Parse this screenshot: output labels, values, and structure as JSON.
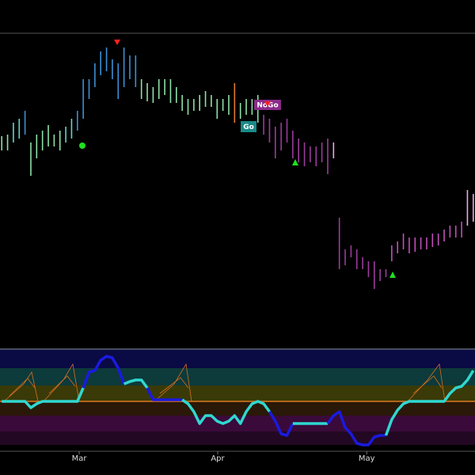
{
  "chart_data": [
    {
      "type": "ohlc",
      "high": [
        67,
        67.5,
        71.25,
        72.5,
        75,
        65,
        67.5,
        68.75,
        70.5,
        67.5,
        68.75,
        70,
        72.5,
        75,
        85,
        85,
        90,
        93.75,
        95,
        91.25,
        90,
        95,
        92.5,
        92.5,
        85,
        83.75,
        82.5,
        85,
        85,
        85,
        82.5,
        80,
        78.75,
        78.75,
        80,
        81.25,
        80,
        78.75,
        78.75,
        80,
        83.75,
        77.5,
        78.75,
        78.75,
        80,
        73.75,
        72.5,
        70,
        71.25,
        72.5,
        68.75,
        66.25,
        65,
        63.75,
        63.75,
        65,
        66.25,
        65,
        41.25,
        31.25,
        32.5,
        31.25,
        28.75,
        27.5,
        27.5,
        25,
        25,
        32.5,
        33.75,
        36.25,
        35,
        35,
        35,
        35,
        36.25,
        36.25,
        37.5,
        38.75,
        38.75,
        40,
        50,
        48.75
      ],
      "low": [
        62.5,
        62.5,
        65,
        66.25,
        67.5,
        54.5,
        60,
        62.5,
        63.75,
        63.75,
        62.5,
        65,
        66.25,
        68.75,
        72.5,
        78.75,
        82.5,
        86.25,
        87.5,
        85,
        78.75,
        82.5,
        85,
        82.5,
        78.75,
        78,
        77.5,
        78.75,
        80,
        77.5,
        77.5,
        75,
        73.75,
        75,
        75,
        76.25,
        76.25,
        72.5,
        75,
        73.75,
        71.25,
        72.5,
        73.75,
        73.75,
        71.25,
        67.5,
        65,
        60,
        62.5,
        65,
        60,
        58.75,
        57.5,
        58.75,
        57.5,
        58.75,
        55,
        60,
        25,
        26.25,
        28.75,
        25,
        25,
        22.5,
        18.75,
        21.25,
        22.5,
        27.5,
        30,
        31.25,
        30,
        30.5,
        31.25,
        31.25,
        32,
        32.5,
        33.75,
        35,
        35,
        35,
        38.75,
        40
      ],
      "colors": [
        "#8ee0a8",
        "#8ee0a8",
        "#66d4c4",
        "#66d4c4",
        "#3d8fd6",
        "#8ee0a8",
        "#8ee0a8",
        "#8ee0a8",
        "#8ee0a8",
        "#8ee0a8",
        "#8ee0a8",
        "#66d4c4",
        "#66d4c4",
        "#3d8fd6",
        "#3d8fd6",
        "#3d8fd6",
        "#3d8fd6",
        "#3d8fd6",
        "#3d8fd6",
        "#3d8fd6",
        "#3d8fd6",
        "#3d8fd6",
        "#3d8fd6",
        "#3d8fd6",
        "#8ee0a8",
        "#8ee0a8",
        "#8ee0a8",
        "#8ee0a8",
        "#8ee0a8",
        "#8ee0a8",
        "#8ee0a8",
        "#8ee0a8",
        "#8ee0a8",
        "#8ee0a8",
        "#8ee0a8",
        "#8ee0a8",
        "#8ee0a8",
        "#8ee0a8",
        "#8ee0a8",
        "#8ee0a8",
        "#e07a2a",
        "#8ee0a8",
        "#8ee0a8",
        "#8ee0a8",
        "#8ee0a8",
        "#9b3c9b",
        "#9b3c9b",
        "#9b3c9b",
        "#9b3c9b",
        "#9b3c9b",
        "#9b3c9b",
        "#9b3c9b",
        "#9b3c9b",
        "#9b3c9b",
        "#9b3c9b",
        "#9b3c9b",
        "#9b3c9b",
        "#e9a8e6",
        "#9b3c9b",
        "#9b3c9b",
        "#9b3c9b",
        "#9b3c9b",
        "#9b3c9b",
        "#9b3c9b",
        "#9b3c9b",
        "#9b3c9b",
        "#9b3c9b",
        "#c050b8",
        "#c050b8",
        "#c050b8",
        "#c050b8",
        "#c050b8",
        "#c050b8",
        "#c050b8",
        "#c050b8",
        "#c050b8",
        "#c050b8",
        "#c050b8",
        "#c050b8",
        "#c050b8",
        "#e9a8e6",
        "#e9a8e6"
      ],
      "ylim": [
        0,
        100
      ],
      "xlim": [
        -0.3,
        81.3
      ],
      "annotations": [
        "Go",
        "NoGo"
      ]
    },
    {
      "type": "line",
      "values": [
        0,
        0,
        0,
        0,
        0,
        -0.8,
        -0.3,
        0,
        0,
        0,
        0,
        0,
        0,
        0,
        1.7,
        3.7,
        3.9,
        5.2,
        5.7,
        5.5,
        4.2,
        2.2,
        2.5,
        2.7,
        2.7,
        1.7,
        0.2,
        0.2,
        0.2,
        0.2,
        0.2,
        0.2,
        -0.3,
        -1.3,
        -2.8,
        -1.8,
        -1.8,
        -2.5,
        -2.8,
        -2.5,
        -1.8,
        -2.8,
        -1.3,
        -0.3,
        0,
        -0.3,
        -1.3,
        -2.5,
        -4.1,
        -4.3,
        -2.8,
        -2.8,
        -2.8,
        -2.8,
        -2.8,
        -2.8,
        -2.8,
        -1.8,
        -1.3,
        -3.3,
        -4.1,
        -5.3,
        -5.5,
        -5.5,
        -4.5,
        -4.3,
        -4.3,
        -2.3,
        -1.1,
        -0.3,
        0,
        0,
        0,
        0,
        0,
        0,
        0,
        1,
        1.7,
        1.9,
        2.7,
        3.9
      ],
      "colors": [
        "#2fd8d0",
        "#2fd8d0",
        "#2fd8d0",
        "#2fd8d0",
        "#2fd8d0",
        "#2fd8d0",
        "#2fd8d0",
        "#2fd8d0",
        "#2fd8d0",
        "#2fd8d0",
        "#2fd8d0",
        "#2fd8d0",
        "#2fd8d0",
        "#2fd8d0",
        "#2fd8d0",
        "#1a1ae0",
        "#1a1ae0",
        "#1a1ae0",
        "#1a1ae0",
        "#1a1ae0",
        "#1a1ae0",
        "#1a1ae0",
        "#2fd8d0",
        "#2fd8d0",
        "#2fd8d0",
        "#2fd8d0",
        "#1a1ae0",
        "#1a1ae0",
        "#1a1ae0",
        "#1a1ae0",
        "#1a1ae0",
        "#1a1ae0",
        "#2fd8d0",
        "#2fd8d0",
        "#2fd8d0",
        "#2fd8d0",
        "#2fd8d0",
        "#2fd8d0",
        "#2fd8d0",
        "#2fd8d0",
        "#2fd8d0",
        "#2fd8d0",
        "#2fd8d0",
        "#2fd8d0",
        "#2fd8d0",
        "#2fd8d0",
        "#2fd8d0",
        "#1a1ae0",
        "#1a1ae0",
        "#1a1ae0",
        "#1a1ae0",
        "#2fd8d0",
        "#2fd8d0",
        "#2fd8d0",
        "#2fd8d0",
        "#2fd8d0",
        "#2fd8d0",
        "#1a1ae0",
        "#1a1ae0",
        "#1a1ae0",
        "#1a1ae0",
        "#1a1ae0",
        "#1a1ae0",
        "#1a1ae0",
        "#1a1ae0",
        "#1a1ae0",
        "#1a1ae0",
        "#2fd8d0",
        "#2fd8d0",
        "#2fd8d0",
        "#2fd8d0",
        "#2fd8d0",
        "#2fd8d0",
        "#2fd8d0",
        "#2fd8d0",
        "#2fd8d0",
        "#2fd8d0",
        "#2fd8d0",
        "#2fd8d0",
        "#2fd8d0",
        "#2fd8d0",
        "#2fd8d0"
      ],
      "ylim": [
        -6,
        6
      ],
      "xlim": [
        -0.3,
        81.3
      ],
      "xticks": [
        {
          "value": 13.3,
          "label": "Mar"
        },
        {
          "value": 37.1,
          "label": "Apr"
        },
        {
          "value": 62.7,
          "label": "May"
        }
      ]
    }
  ]
}
